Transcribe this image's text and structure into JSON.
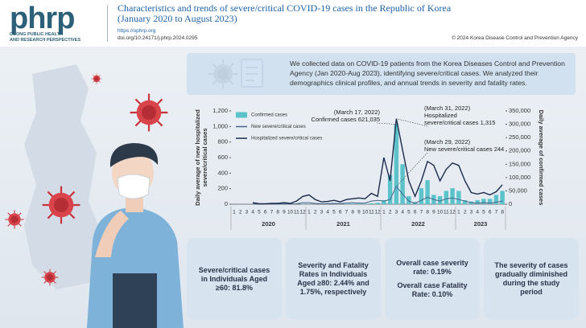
{
  "header": {
    "logo": "phrp",
    "journal_lines": [
      "OSONG PUBLIC HEALTH",
      "AND RESEARCH PERSPECTIVES"
    ],
    "title_lines": [
      "Characteristics and trends of severe/critical COVID-19 cases in the Republic of Korea",
      "(January 2020 to August 2023)"
    ],
    "url": "https://ophrp.org",
    "doi": "doi.org/10.24171/j.phrp.2024.0295",
    "copyright": "© 2024 Korea Disease Control and Prevention Agency"
  },
  "summary": "We collected data on COVID-19 patients from the Korea Diseases Control and Prevention Agency (Jan 2020-Aug 2023), identifying severe/critical cases. We analyzed their demographics clinical profiles, and annual trends in severity and fatality rates.",
  "chart_data": {
    "type": "combo",
    "y_label_lines": [
      "Daily average of new hospitalized",
      "severe/critical cases"
    ],
    "y2_label": "Daily average of confirmed cases",
    "categories": [
      "1",
      "2",
      "3",
      "4",
      "5",
      "6",
      "7",
      "8",
      "9",
      "10",
      "11",
      "12",
      "1",
      "2",
      "3",
      "4",
      "5",
      "6",
      "7",
      "8",
      "9",
      "10",
      "11",
      "12",
      "1",
      "2",
      "3",
      "4",
      "5",
      "6",
      "7",
      "8",
      "9",
      "10",
      "11",
      "12",
      "1",
      "2",
      "3",
      "4",
      "5",
      "6",
      "7",
      "8"
    ],
    "year_labels": [
      "2020",
      "2021",
      "2022",
      "2023"
    ],
    "series": [
      {
        "name": "Confirmed cases",
        "type": "bar",
        "axis": "y2",
        "color": "#5cc3cb",
        "values": [
          1,
          100,
          250,
          30,
          20,
          40,
          50,
          150,
          100,
          80,
          300,
          1000,
          600,
          400,
          400,
          600,
          600,
          600,
          1400,
          1800,
          2200,
          1700,
          3000,
          5500,
          15000,
          110000,
          300000,
          150000,
          30000,
          8000,
          60000,
          90000,
          35000,
          30000,
          50000,
          60000,
          50000,
          15000,
          10000,
          15000,
          20000,
          20000,
          35000,
          50000
        ]
      },
      {
        "name": "New severe/critical cases",
        "type": "line",
        "color": "#44638a",
        "values": [
          null,
          null,
          null,
          5,
          2,
          2,
          3,
          3,
          5,
          3,
          5,
          20,
          20,
          10,
          5,
          8,
          10,
          8,
          15,
          20,
          15,
          15,
          40,
          50,
          40,
          60,
          230,
          130,
          40,
          10,
          50,
          90,
          60,
          40,
          70,
          80,
          60,
          40,
          20,
          15,
          20,
          15,
          25,
          40
        ]
      },
      {
        "name": "Hospitalized severe/critical cases",
        "type": "line",
        "color": "#1b2a4a",
        "values": [
          null,
          null,
          null,
          20,
          5,
          5,
          10,
          10,
          20,
          10,
          40,
          100,
          120,
          60,
          30,
          35,
          50,
          30,
          60,
          70,
          80,
          70,
          140,
          100,
          600,
          300,
          1100,
          700,
          300,
          100,
          300,
          550,
          500,
          300,
          450,
          530,
          500,
          300,
          150,
          130,
          150,
          120,
          160,
          250
        ]
      }
    ],
    "ylim": [
      0,
      1200
    ],
    "yticks": [
      0,
      200,
      400,
      600,
      800,
      {
        "value": 1000,
        "label": "1,000"
      },
      {
        "value": 1200,
        "label": "1,200"
      }
    ],
    "y2lim": [
      0,
      350000
    ],
    "y2ticks": [
      0,
      {
        "value": 50000,
        "label": "50,000"
      },
      {
        "value": 100000,
        "label": "100,000"
      },
      {
        "value": 150000,
        "label": "150,000"
      },
      {
        "value": 200000,
        "label": "200,000"
      },
      {
        "value": 250000,
        "label": "250,000"
      },
      {
        "value": 300000,
        "label": "300,000"
      },
      {
        "value": 350000,
        "label": "350,000"
      }
    ],
    "grid": false,
    "annotations": [
      {
        "lines": [
          "(March 17, 2022)",
          "Confirmed cases 621,035"
        ]
      },
      {
        "lines": [
          "(March 31, 2022)",
          "Hospitalized",
          "severe/critical cases 1,315"
        ]
      },
      {
        "lines": [
          "(March 29, 2022)",
          "New severe/critical cases 244"
        ]
      }
    ]
  },
  "cards": [
    {
      "texts": [
        "Severe/critical cases in Individuals Aged ≥60: 81.8%"
      ]
    },
    {
      "texts": [
        "Severity and Fatality Rates in Individuals Aged ≥80: 2.44% and 1.75%, respectively"
      ]
    },
    {
      "texts": [
        "Overall case severity rate: 0.19%",
        "Overall case Fatality Rate: 0.10%"
      ]
    },
    {
      "texts": [
        "The severity of cases gradually diminished during the study period"
      ]
    }
  ]
}
